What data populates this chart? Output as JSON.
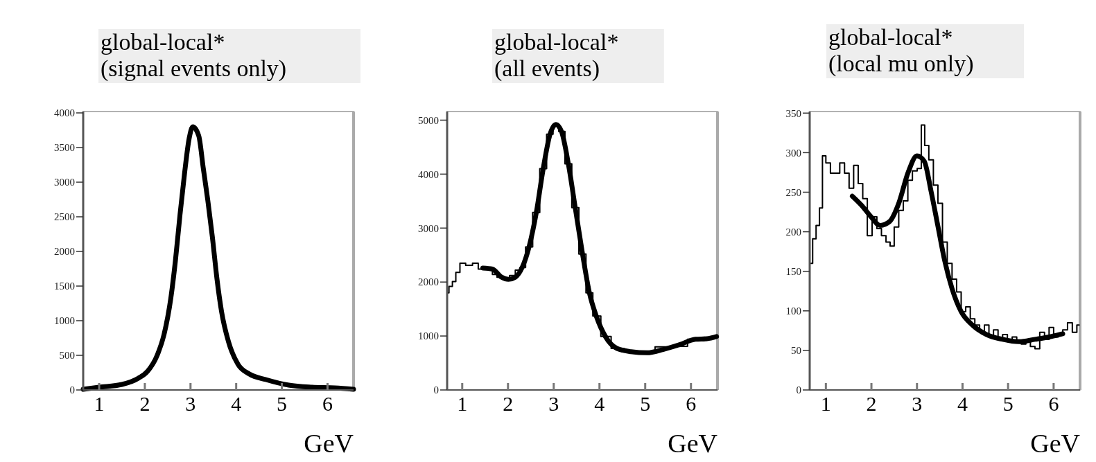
{
  "chart_data": [
    {
      "type": "line",
      "title": "global-local*",
      "subtitle": "(signal events only)",
      "xlabel": "GeV",
      "xlim": [
        0.65,
        6.57
      ],
      "xticks": [
        1,
        2,
        3,
        4,
        5,
        6
      ],
      "ylim": [
        0,
        4020
      ],
      "yticks": [
        0,
        500,
        1000,
        1500,
        2000,
        2500,
        3000,
        3500,
        4000
      ],
      "grid": false,
      "series": [
        {
          "type": "line",
          "color": "#000000",
          "x": [
            0.65,
            1.0,
            1.5,
            1.86,
            2.06,
            2.27,
            2.42,
            2.57,
            2.67,
            2.77,
            2.87,
            2.97,
            3.05,
            3.18,
            3.28,
            3.38,
            3.48,
            3.58,
            3.68,
            3.83,
            4.04,
            4.29,
            4.65,
            5.15,
            5.66,
            6.16,
            6.57
          ],
          "values": [
            10,
            40,
            80,
            170,
            270,
            500,
            800,
            1330,
            1870,
            2530,
            3130,
            3630,
            3800,
            3670,
            3200,
            2730,
            2200,
            1600,
            1130,
            700,
            370,
            230,
            150,
            70,
            40,
            30,
            10
          ]
        }
      ]
    },
    {
      "type": "line",
      "title": "global-local*",
      "subtitle": "(all events)",
      "xlabel": "GeV",
      "xlim": [
        0.67,
        6.58
      ],
      "xticks": [
        1,
        2,
        3,
        4,
        5,
        6
      ],
      "ylim": [
        0,
        5160
      ],
      "yticks": [
        0,
        1000,
        2000,
        3000,
        4000,
        5000
      ],
      "grid": false,
      "series": [
        {
          "type": "step",
          "color": "#000000",
          "x": [
            0.67,
            0.75,
            0.82,
            0.9,
            1.0,
            1.15,
            1.3,
            1.4,
            1.61,
            1.71,
            1.81,
            1.96,
            2.11,
            2.21,
            2.31,
            2.46,
            2.62,
            2.77,
            2.92,
            3.05,
            3.17,
            3.32,
            3.47,
            3.63,
            3.78,
            3.93,
            4.13,
            4.38,
            4.69,
            5.04,
            5.39,
            5.75,
            6.1,
            6.35,
            6.56
          ],
          "values": [
            1800,
            1920,
            2010,
            2180,
            2350,
            2310,
            2350,
            2240,
            2240,
            2140,
            2090,
            2050,
            2120,
            2220,
            2270,
            2650,
            3290,
            4100,
            4740,
            4920,
            4790,
            4190,
            3380,
            2520,
            1800,
            1370,
            990,
            770,
            710,
            690,
            800,
            810,
            940,
            950,
            990
          ]
        },
        {
          "type": "line",
          "color": "#000000",
          "x": [
            1.45,
            1.66,
            1.86,
            2.01,
            2.16,
            2.31,
            2.46,
            2.62,
            2.77,
            2.92,
            3.05,
            3.17,
            3.32,
            3.47,
            3.63,
            3.78,
            3.93,
            4.13,
            4.38,
            4.69,
            5.04,
            5.39,
            5.75,
            6.1,
            6.35,
            6.56
          ],
          "values": [
            2260,
            2240,
            2090,
            2050,
            2090,
            2270,
            2650,
            3290,
            4100,
            4740,
            4920,
            4790,
            4190,
            3380,
            2520,
            1800,
            1370,
            990,
            770,
            710,
            690,
            750,
            840,
            940,
            950,
            990
          ]
        }
      ]
    },
    {
      "type": "line",
      "title": "global-local*",
      "subtitle": "(local mu only)",
      "xlabel": "GeV",
      "xlim": [
        0.645,
        6.58
      ],
      "xticks": [
        1,
        2,
        3,
        4,
        5,
        6
      ],
      "ylim": [
        0,
        352
      ],
      "yticks": [
        0,
        50,
        100,
        150,
        200,
        250,
        300,
        350
      ],
      "grid": false,
      "series": [
        {
          "type": "step",
          "color": "#000000",
          "x": [
            0.67,
            0.75,
            0.82,
            0.9,
            0.95,
            1.05,
            1.15,
            1.25,
            1.36,
            1.46,
            1.56,
            1.66,
            1.76,
            1.86,
            1.96,
            2.07,
            2.17,
            2.27,
            2.37,
            2.45,
            2.55,
            2.65,
            2.75,
            2.85,
            2.95,
            3.06,
            3.13,
            3.21,
            3.31,
            3.41,
            3.51,
            3.61,
            3.72,
            3.82,
            3.92,
            4.02,
            4.12,
            4.22,
            4.32,
            4.43,
            4.53,
            4.63,
            4.73,
            4.83,
            4.93,
            5.04,
            5.14,
            5.24,
            5.34,
            5.44,
            5.54,
            5.64,
            5.75,
            5.85,
            5.95,
            6.05,
            6.15,
            6.25,
            6.36,
            6.46,
            6.56
          ],
          "values": [
            160,
            191,
            208,
            230,
            296,
            287,
            274,
            274,
            287,
            274,
            255,
            284,
            261,
            242,
            195,
            219,
            204,
            195,
            187,
            182,
            206,
            227,
            239,
            265,
            277,
            280,
            335,
            309,
            291,
            259,
            236,
            187,
            160,
            140,
            124,
            99,
            105,
            90,
            82,
            73,
            82,
            67,
            76,
            64,
            70,
            61,
            67,
            61,
            58,
            64,
            55,
            52,
            73,
            64,
            79,
            67,
            70,
            76,
            85,
            73,
            82
          ]
        },
        {
          "type": "line",
          "color": "#000000",
          "x": [
            1.58,
            1.79,
            1.99,
            2.19,
            2.4,
            2.6,
            2.8,
            3.0,
            3.16,
            3.31,
            3.46,
            3.61,
            3.77,
            3.97,
            4.22,
            4.53,
            4.88,
            5.24,
            5.59,
            5.9,
            6.2
          ],
          "values": [
            245,
            233,
            219,
            208,
            213,
            236,
            274,
            296,
            289,
            251,
            207,
            163,
            128,
            99,
            82,
            70,
            64,
            61,
            64,
            67,
            71
          ]
        }
      ]
    }
  ]
}
